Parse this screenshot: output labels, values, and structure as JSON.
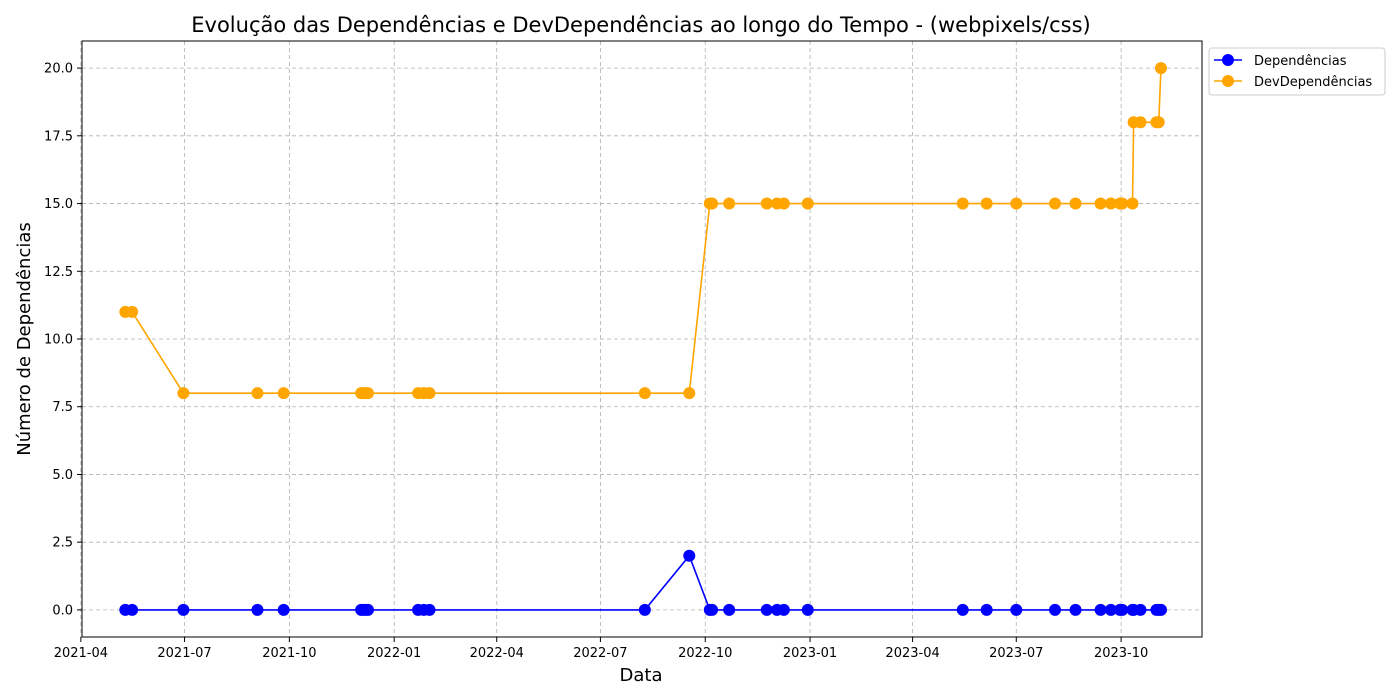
{
  "chart_data": {
    "type": "line",
    "title": "Evolução das Dependências e DevDependências ao longo do Tempo - (webpixels/css)",
    "xlabel": "Data",
    "ylabel": "Número de Dependências",
    "grid": true,
    "legend_position": "outside-top-right",
    "xlim": [
      "2021-04-02",
      "2023-12-11"
    ],
    "ylim": [
      -1,
      21
    ],
    "x_ticks": [
      "2021-04",
      "2021-07",
      "2021-10",
      "2022-01",
      "2022-04",
      "2022-07",
      "2022-10",
      "2023-01",
      "2023-04",
      "2023-07",
      "2023-10"
    ],
    "x_tick_dates": [
      "2021-04-01",
      "2021-07-01",
      "2021-10-01",
      "2022-01-01",
      "2022-04-01",
      "2022-07-01",
      "2022-10-01",
      "2023-01-01",
      "2023-04-01",
      "2023-07-01",
      "2023-10-01"
    ],
    "y_ticks": [
      "0.0",
      "2.5",
      "5.0",
      "7.5",
      "10.0",
      "12.5",
      "15.0",
      "17.5",
      "20.0"
    ],
    "y_tick_values": [
      0,
      2.5,
      5,
      7.5,
      10,
      12.5,
      15,
      17.5,
      20
    ],
    "x": [
      "2021-05-10",
      "2021-05-16",
      "2021-06-30",
      "2021-09-03",
      "2021-09-26",
      "2021-12-03",
      "2021-12-05",
      "2021-12-07",
      "2021-12-09",
      "2022-01-22",
      "2022-01-27",
      "2022-02-01",
      "2022-08-09",
      "2022-09-17",
      "2022-10-05",
      "2022-10-07",
      "2022-10-22",
      "2022-11-24",
      "2022-12-03",
      "2022-12-09",
      "2022-12-30",
      "2023-05-15",
      "2023-06-05",
      "2023-07-01",
      "2023-08-04",
      "2023-08-22",
      "2023-09-13",
      "2023-09-22",
      "2023-09-30",
      "2023-10-02",
      "2023-10-11",
      "2023-10-12",
      "2023-10-18",
      "2023-11-01",
      "2023-11-03",
      "2023-11-05"
    ],
    "series": [
      {
        "name": "Dependências",
        "color": "#0000ff",
        "values": [
          0,
          0,
          0,
          0,
          0,
          0,
          0,
          0,
          0,
          0,
          0,
          0,
          0,
          2,
          0,
          0,
          0,
          0,
          0,
          0,
          0,
          0,
          0,
          0,
          0,
          0,
          0,
          0,
          0,
          0,
          0,
          0,
          0,
          0,
          0,
          0
        ]
      },
      {
        "name": "DevDependências",
        "color": "#ffa500",
        "values": [
          11,
          11,
          8,
          8,
          8,
          8,
          8,
          8,
          8,
          8,
          8,
          8,
          8,
          8,
          15,
          15,
          15,
          15,
          15,
          15,
          15,
          15,
          15,
          15,
          15,
          15,
          15,
          15,
          15,
          15,
          15,
          18,
          18,
          18,
          18,
          20
        ]
      }
    ]
  }
}
